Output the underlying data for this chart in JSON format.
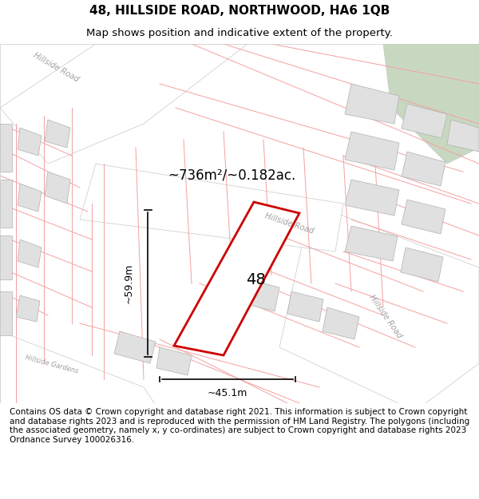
{
  "title_line1": "48, HILLSIDE ROAD, NORTHWOOD, HA6 1QB",
  "title_line2": "Map shows position and indicative extent of the property.",
  "area_text": "~736m²/~0.182ac.",
  "width_label": "~45.1m",
  "height_label": "~59.9m",
  "property_number": "48",
  "footnote": "Contains OS data © Crown copyright and database right 2021. This information is subject to Crown copyright and database rights 2023 and is reproduced with the permission of HM Land Registry. The polygons (including the associated geometry, namely x, y co-ordinates) are subject to Crown copyright and database rights 2023 Ordnance Survey 100026316.",
  "map_bg": "#f0efed",
  "road_fill": "#ffffff",
  "block_fill": "#e0e0e0",
  "road_line_color": "#c8c8c8",
  "parcel_line_color": "#f5a0a0",
  "highlight_color": "#cc0000",
  "green_area": "#c8d8c0",
  "title_fontsize": 11,
  "subtitle_fontsize": 9.5,
  "footnote_fontsize": 7.5
}
